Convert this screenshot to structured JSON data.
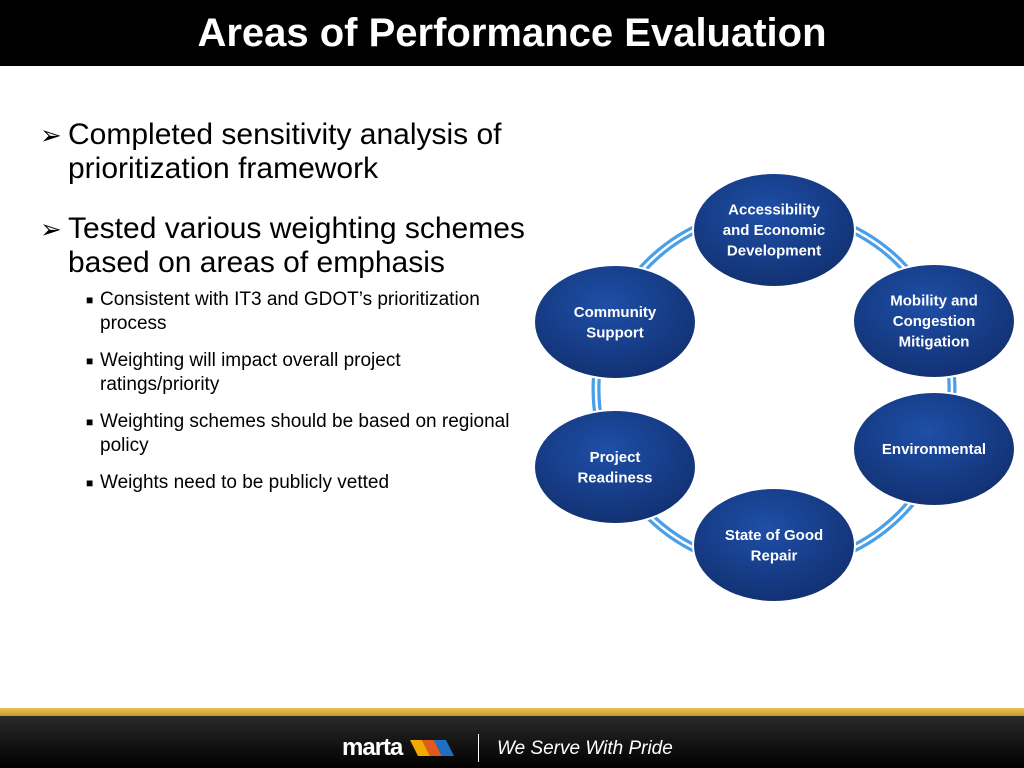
{
  "slide": {
    "title": "Areas of Performance Evaluation"
  },
  "bullets": [
    {
      "text": "Completed sensitivity analysis of prioritization framework",
      "sub": []
    },
    {
      "text": "Tested various weighting schemes based on areas of emphasis",
      "sub": [
        "Consistent with IT3 and GDOT’s prioritization process",
        "Weighting will impact overall project ratings/priority",
        "Weighting schemes should be based on regional policy",
        "Weights need to be publicly vetted"
      ]
    }
  ],
  "diagram": {
    "nodes": [
      {
        "lines": [
          "Accessibility",
          "and Economic",
          "Development"
        ]
      },
      {
        "lines": [
          "Mobility and",
          "Congestion",
          "Mitigation"
        ]
      },
      {
        "lines": [
          "Environmental"
        ]
      },
      {
        "lines": [
          "State of Good",
          "Repair"
        ]
      },
      {
        "lines": [
          "Project",
          "Readiness"
        ]
      },
      {
        "lines": [
          "Community",
          "Support"
        ]
      }
    ],
    "node_color": "#173E8C",
    "ring_color": "#4A9FE8"
  },
  "footer": {
    "logo_text": "marta",
    "tagline": "We Serve With Pride"
  }
}
